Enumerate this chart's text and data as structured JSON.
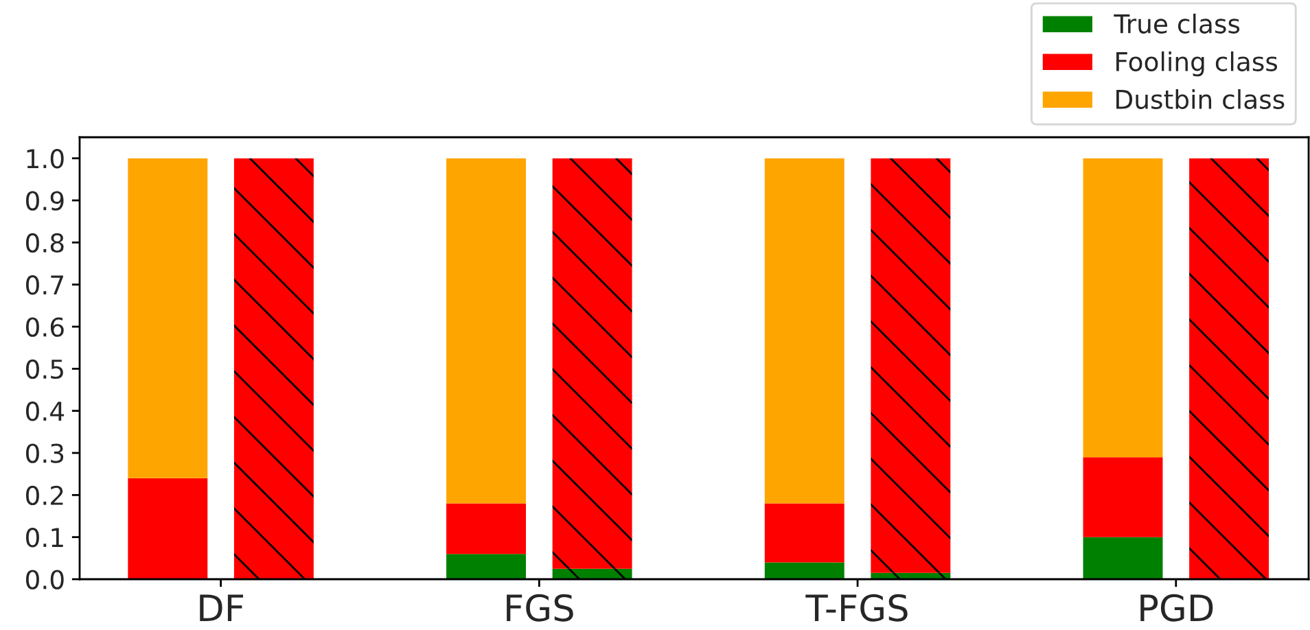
{
  "chart_data": {
    "type": "bar",
    "stacked": true,
    "categories": [
      "DF",
      null,
      null,
      "FGS",
      null,
      null,
      "T-FGS",
      null,
      null,
      "PGD",
      null,
      null
    ],
    "series": [
      {
        "name": "True class",
        "color": "#008000",
        "values": [
          0,
          null,
          null,
          0.06,
          null,
          null,
          0.04,
          null,
          null,
          0.1,
          null,
          null
        ]
      },
      {
        "name": "Fooling class",
        "color": "#ff0000",
        "values": [
          0.24,
          null,
          null,
          0.12,
          null,
          null,
          0.14,
          null,
          null,
          0.19,
          null,
          null
        ]
      },
      {
        "name": "Dustbin class",
        "color": "#ffa500",
        "values": [
          0.76,
          null,
          null,
          0.82,
          null,
          null,
          0.82,
          null,
          null,
          0.71,
          null,
          null
        ]
      },
      {
        "color": "#008000",
        "values": [
          null,
          0,
          null,
          null,
          0.025,
          null,
          null,
          0.015,
          null,
          null,
          0,
          null
        ]
      },
      {
        "color": "#ff0000",
        "values": [
          null,
          1.0,
          null,
          null,
          0.975,
          null,
          null,
          0.985,
          null,
          null,
          1.0,
          null
        ]
      }
    ],
    "ylim": [
      0,
      1.05
    ],
    "yticks": [
      {
        "value": 0,
        "label": "0.0"
      },
      0.1,
      0.2,
      0.3,
      0.4,
      0.5,
      0.6,
      0.7,
      0.8,
      0.9,
      {
        "value": 1,
        "label": "1.0"
      }
    ],
    "grid": false,
    "legend": "top right"
  }
}
